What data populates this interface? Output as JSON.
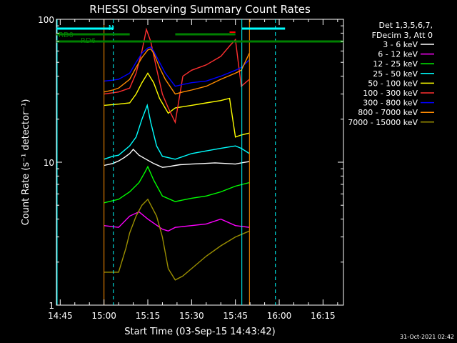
{
  "chart_data": {
    "type": "line",
    "title": "RHESSI Observing Summary Count Rates",
    "xlabel": "Start Time (03-Sep-15 14:43:42)",
    "ylabel": "Count Rate (s⁻¹ detector⁻¹)",
    "yscale": "log",
    "ylim": [
      1,
      100
    ],
    "xlim_minutes_after_1445": [
      -1.3,
      97
    ],
    "x_ticks": [
      "14:45",
      "15:00",
      "15:15",
      "15:30",
      "15:45",
      "16:00",
      "16:15"
    ],
    "y_ticks": [
      "1",
      "10",
      "100"
    ],
    "timestamp": "31-Oct-2021 02:42",
    "legend_header": [
      "Det 1,3,5,6,7,",
      "FDecim 3, Att 0"
    ],
    "legend_placement": "right",
    "series": [
      {
        "name": "3 - 6 keV",
        "color": "#ffffff",
        "x": [
          15,
          18,
          20,
          22,
          23.8,
          25,
          27,
          29.4,
          32,
          35,
          37,
          39.4,
          41,
          45,
          49,
          53,
          57,
          60,
          62,
          64.8
        ],
        "y": [
          9.5,
          9.8,
          10.2,
          10.8,
          11.5,
          12.3,
          11.2,
          10.5,
          9.8,
          9.2,
          9.3,
          9.5,
          9.6,
          9.7,
          9.8,
          9.9,
          9.8,
          9.7,
          9.9,
          10.1
        ]
      },
      {
        "name": "6 - 12 keV",
        "color": "#ff00ff",
        "x": [
          15,
          20,
          23.8,
          27,
          30,
          35,
          37,
          39.4,
          45,
          50,
          55,
          60,
          64.8
        ],
        "y": [
          3.6,
          3.5,
          4.2,
          4.5,
          4.0,
          3.4,
          3.3,
          3.5,
          3.6,
          3.7,
          4.0,
          3.6,
          3.5
        ]
      },
      {
        "name": "12 - 25 keV",
        "color": "#00ff00",
        "x": [
          15,
          20,
          23.8,
          27,
          29,
          30,
          32,
          35,
          39.4,
          45,
          50,
          55,
          60,
          64.8
        ],
        "y": [
          5.2,
          5.5,
          6.2,
          7.2,
          8.5,
          9.3,
          7.5,
          5.8,
          5.3,
          5.6,
          5.8,
          6.2,
          6.8,
          7.2
        ]
      },
      {
        "name": "25 - 50 keV",
        "color": "#00ffff",
        "x": [
          15,
          18,
          20,
          23.8,
          26,
          28,
          29.8,
          31,
          33,
          35,
          39.4,
          45,
          50,
          55,
          60,
          62,
          64.8
        ],
        "y": [
          10.5,
          11,
          11.2,
          13,
          15,
          20,
          25,
          19,
          13,
          11,
          10.5,
          11.5,
          12,
          12.5,
          13,
          12.5,
          11.5
        ]
      },
      {
        "name": "50 - 100 keV",
        "color": "#ffff00",
        "x": [
          15,
          20,
          23.8,
          26,
          28,
          30,
          32,
          34,
          37,
          39.4,
          45,
          50,
          55,
          58,
          60,
          62,
          64.8
        ],
        "y": [
          25,
          25.5,
          26,
          30,
          36,
          42,
          36,
          28,
          22,
          24,
          25,
          26,
          27,
          28,
          15,
          15.5,
          16
        ]
      },
      {
        "name": "100 - 300 keV",
        "color": "#ff3030",
        "x": [
          15,
          20,
          23.8,
          26,
          28,
          29.5,
          31,
          33,
          35,
          37,
          39.4,
          42,
          45,
          50,
          55,
          58,
          60,
          62,
          64.8
        ],
        "y": [
          30,
          31,
          33,
          42,
          60,
          85,
          70,
          45,
          30,
          24,
          19,
          40,
          44,
          48,
          55,
          65,
          72,
          34,
          38
        ]
      },
      {
        "name": "300 - 800 keV",
        "color": "#0000ff",
        "x": [
          15,
          18,
          20,
          23.8,
          26,
          28,
          30,
          31,
          32,
          34,
          36,
          39.4,
          42,
          45,
          50,
          55,
          60,
          62,
          64.8
        ],
        "y": [
          37,
          37.5,
          38,
          42,
          50,
          58,
          63,
          64,
          60,
          50,
          42,
          34,
          35,
          36,
          37,
          40,
          44,
          46,
          52
        ]
      },
      {
        "name": "800 - 7000 keV",
        "color": "#ff8c00",
        "x": [
          15,
          18,
          20,
          23.8,
          26,
          28,
          30,
          31,
          32,
          34,
          36,
          39.4,
          42,
          45,
          50,
          55,
          60,
          62,
          64.8
        ],
        "y": [
          31,
          32,
          33,
          38,
          46,
          54,
          61,
          62,
          58,
          46,
          38,
          30,
          31,
          32,
          34,
          38,
          42,
          44,
          58
        ]
      },
      {
        "name": "7000 - 15000 keV",
        "color": "#9b8f00",
        "x": [
          15,
          20,
          22.5,
          23.8,
          26,
          28,
          30,
          33,
          35,
          37,
          39.4,
          42,
          45,
          50,
          55,
          60,
          64.8
        ],
        "y": [
          1.7,
          1.7,
          2.5,
          3.2,
          4.2,
          5.0,
          5.5,
          4.2,
          3.0,
          1.8,
          1.5,
          1.6,
          1.8,
          2.2,
          2.6,
          3.0,
          3.3
        ]
      }
    ],
    "markers": {
      "vertical_solid": [
        {
          "x": 15,
          "color": "#ff8c00"
        },
        {
          "x": 64.8,
          "color": "#ff8c00"
        },
        {
          "x": 62.2,
          "color": "#00ffff"
        }
      ],
      "vertical_dashed": [
        {
          "x": 18.2,
          "color": "#00ffff"
        },
        {
          "x": 73.7,
          "color": "#00ffff"
        }
      ],
      "night_bar_color": "#00ffff",
      "saa_bar_color": "#008000",
      "flare_bar_color": "#ff0000"
    },
    "annotations": [
      "N",
      "RD0",
      "RD6"
    ]
  }
}
